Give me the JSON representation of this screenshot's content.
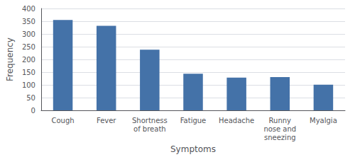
{
  "chart_data": {
    "type": "bar",
    "categories": [
      "Cough",
      "Fever",
      "Shortness\nof breath",
      "Fatigue",
      "Headache",
      "Runny\nnose and\nsneezing",
      "Myalgia"
    ],
    "values": [
      355,
      332,
      238,
      144,
      129,
      131,
      101
    ],
    "color": "#4472a8",
    "xlabel": "Symptoms",
    "ylabel": "Frequency",
    "ylim": [
      0,
      400
    ],
    "yticks": [
      0,
      50,
      100,
      150,
      200,
      250,
      300,
      350,
      400
    ],
    "grid": true
  }
}
